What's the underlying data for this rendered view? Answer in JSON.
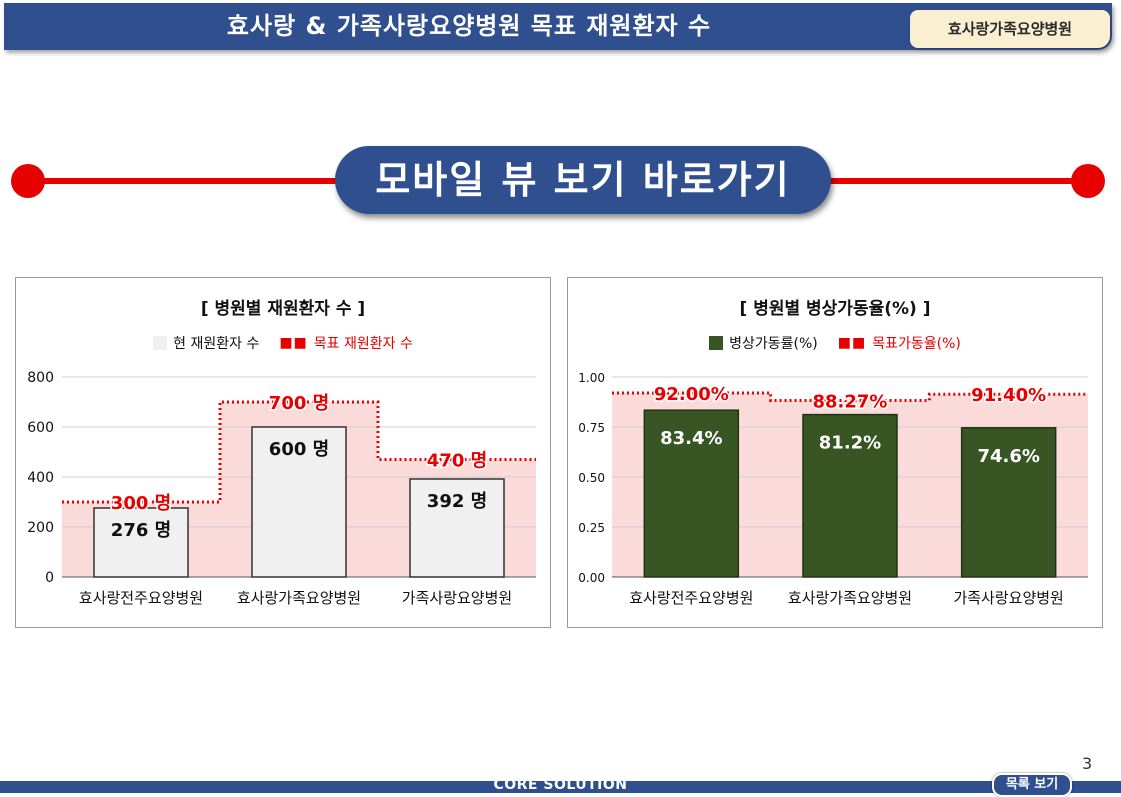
{
  "header": {
    "title": "효사랑 & 가족사랑요양병원 목표 재원환자 수",
    "hospital_tab": "효사랑가족요양병원"
  },
  "mobile_link": "모바일 뷰 보기 바로가기",
  "colors": {
    "header_bg": "#2f4f8f",
    "accent_red": "#e60000",
    "target_fill": "#fbdada",
    "bar_light": "#f0f0f0",
    "bar_green": "#375623"
  },
  "footer": {
    "page_number": "3",
    "brand": "CORE SOLUTION",
    "list_button": "목록 보기"
  },
  "chart_data": [
    {
      "type": "bar",
      "title": "[ 병원별 재원환자 수 ]",
      "categories": [
        "효사랑전주요양병원",
        "효사랑가족요양병원",
        "가족사랑요양병원"
      ],
      "series": [
        {
          "name": "현 재원환자 수",
          "values": [
            276,
            600,
            392
          ],
          "labels": [
            "276 명",
            "600 명",
            "392 명"
          ]
        },
        {
          "name": "목표 재원환자 수",
          "style": "dotted-step",
          "values": [
            300,
            700,
            470
          ],
          "labels": [
            "300 명",
            "700 명",
            "470 명"
          ]
        }
      ],
      "ylim": [
        0,
        800
      ],
      "yticks": [
        "0",
        "200",
        "400",
        "600",
        "800"
      ],
      "grid": true,
      "legend": "top"
    },
    {
      "type": "bar",
      "title": "[ 병원별 병상가동율(%) ]",
      "categories": [
        "효사랑전주요양병원",
        "효사랑가족요양병원",
        "가족사랑요양병원"
      ],
      "series": [
        {
          "name": "병상가동률(%)",
          "values": [
            0.834,
            0.812,
            0.746
          ],
          "labels": [
            "83.4%",
            "81.2%",
            "74.6%"
          ]
        },
        {
          "name": "목표가동율(%)",
          "style": "dotted-step",
          "values": [
            0.92,
            0.8827,
            0.914
          ],
          "labels": [
            "92.00%",
            "88.27%",
            "91.40%"
          ]
        }
      ],
      "ylim": [
        0,
        1
      ],
      "yticks": [
        "0.00",
        "0.25",
        "0.50",
        "0.75",
        "1.00"
      ],
      "grid": true,
      "legend": "top"
    }
  ]
}
